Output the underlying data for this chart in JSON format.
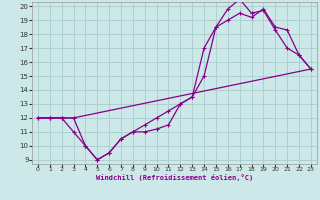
{
  "xlabel": "Windchill (Refroidissement éolien,°C)",
  "bg_color": "#cce8e8",
  "grid_color": "#aacccc",
  "line_color": "#880088",
  "xlim": [
    0,
    23
  ],
  "ylim": [
    9,
    20
  ],
  "xticks": [
    0,
    1,
    2,
    3,
    4,
    5,
    6,
    7,
    8,
    9,
    10,
    11,
    12,
    13,
    14,
    15,
    16,
    17,
    18,
    19,
    20,
    21,
    22,
    23
  ],
  "yticks": [
    9,
    10,
    11,
    12,
    13,
    14,
    15,
    16,
    17,
    18,
    19,
    20
  ],
  "curve1_x": [
    0,
    1,
    2,
    3,
    4,
    5,
    6,
    7,
    8,
    9,
    10,
    11,
    12,
    13,
    14,
    15,
    16,
    17,
    18,
    19,
    20,
    21,
    22,
    23
  ],
  "curve1_y": [
    12,
    12,
    12,
    12,
    10.0,
    9.0,
    9.5,
    10.5,
    11.0,
    11.0,
    11.2,
    11.5,
    13.0,
    13.5,
    17.0,
    18.5,
    19.8,
    20.5,
    19.5,
    19.7,
    18.3,
    17.0,
    16.5,
    15.5
  ],
  "curve2_x": [
    0,
    1,
    2,
    3,
    4,
    5,
    6,
    7,
    8,
    9,
    10,
    11,
    12,
    13,
    14,
    15,
    16,
    17,
    18,
    19,
    20,
    21,
    22,
    23
  ],
  "curve2_y": [
    12,
    12,
    12,
    11,
    10.0,
    9.0,
    9.5,
    10.5,
    11.0,
    11.5,
    12.0,
    12.5,
    13.0,
    13.5,
    15.0,
    18.5,
    19.0,
    19.5,
    19.2,
    19.8,
    18.5,
    18.3,
    16.5,
    15.5
  ],
  "curve3_x": [
    0,
    3,
    23
  ],
  "curve3_y": [
    12,
    12,
    15.5
  ]
}
